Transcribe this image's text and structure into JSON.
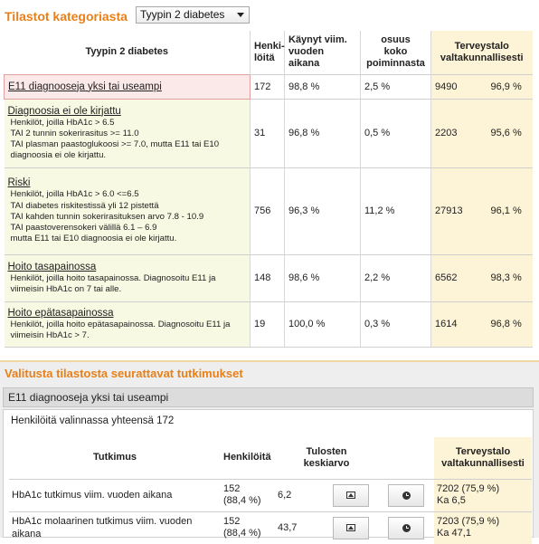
{
  "header": {
    "title": "Tilastot kategoriasta",
    "select_value": "Tyypin 2 diabetes",
    "chevron_icon": "chevron-down-icon"
  },
  "stats_table": {
    "columns": {
      "category": "Tyypin 2 diabetes",
      "persons": "Henki-\nlöitä",
      "visited": "Käynyt viim.\nvuoden aikana",
      "share": "osuus\nkoko\npoiminnasta",
      "national": "Terveystalo\nvaltakunnallisesti"
    },
    "rows": [
      {
        "title": "E11 diagnooseja yksi tai useampi",
        "desc": [],
        "persons": "172",
        "visited": "98,8 %",
        "share": "2,5 %",
        "nat_count": "9490",
        "nat_pct": "96,9 %"
      },
      {
        "title": "Diagnoosia ei ole kirjattu",
        "desc": [
          "Henkilöt, joilla HbA1c > 6.5",
          "TAI 2 tunnin sokerirasitus >= 11.0",
          "TAI plasman paastoglukoosi >= 7.0, mutta E11 tai E10 diagnoosia ei ole kirjattu."
        ],
        "persons": "31",
        "visited": "96,8 %",
        "share": "0,5 %",
        "nat_count": "2203",
        "nat_pct": "95,6 %"
      },
      {
        "title": "Riski",
        "desc": [
          "Henkilöt, joilla HbA1c > 6.0 <=6.5",
          "TAI diabetes riskitestissä yli 12 pistettä",
          "TAI kahden tunnin sokerirasituksen arvo 7.8 - 10.9",
          "TAI paastoverensokeri välillä 6.1 – 6.9",
          "mutta E11 tai E10 diagnoosia ei ole kirjattu."
        ],
        "persons": "756",
        "visited": "96,3 %",
        "share": "11,2 %",
        "nat_count": "27913",
        "nat_pct": "96,1 %"
      },
      {
        "title": "Hoito tasapainossa",
        "desc": [
          "Henkilöt, joilla hoito tasapainossa. Diagnosoitu E11 ja viimeisin HbA1c on 7 tai alle."
        ],
        "persons": "148",
        "visited": "98,6 %",
        "share": "2,2 %",
        "nat_count": "6562",
        "nat_pct": "98,3 %"
      },
      {
        "title": "Hoito epätasapainossa",
        "desc": [
          "Henkilöt, joilla hoito epätasapainossa. Diagnosoitu E11 ja viimeisin HbA1c > 7."
        ],
        "persons": "19",
        "visited": "100,0 %",
        "share": "0,3 %",
        "nat_count": "1614",
        "nat_pct": "96,8 %"
      }
    ]
  },
  "followed": {
    "title": "Valitusta tilastosta seurattavat tutkimukset",
    "selected": "E11 diagnooseja yksi tai useampi",
    "count_line": "Henkilöitä valinnassa yhteensä 172",
    "columns": {
      "test": "Tutkimus",
      "persons": "Henkilöitä",
      "avg": "Tulosten\nkeskiarvo",
      "national": "Terveystalo\nvaltakunnallisesti"
    },
    "rows": [
      {
        "name": "HbA1c tutkimus viim. vuoden aikana",
        "persons": "152\n(88,4 %)",
        "avg": "6,2",
        "national_1": "7202 (75,9 %)",
        "national_2": "Ka 6,5",
        "btn1_icon": "image-icon",
        "btn2_icon": "clock-icon"
      },
      {
        "name": "HbA1c molaarinen tutkimus viim. vuoden aikana",
        "persons": "152\n(88,4 %)",
        "avg": "43,7",
        "national_1": "7203 (75,9 %)",
        "national_2": "Ka 47,1",
        "btn1_icon": "image-icon",
        "btn2_icon": "clock-icon"
      }
    ]
  },
  "colors": {
    "accent_orange": "#e8801a",
    "national_bg": "#fdf3d6",
    "row_bg": "#f7f9e2",
    "selected_row_bg": "#fbe8e8"
  }
}
